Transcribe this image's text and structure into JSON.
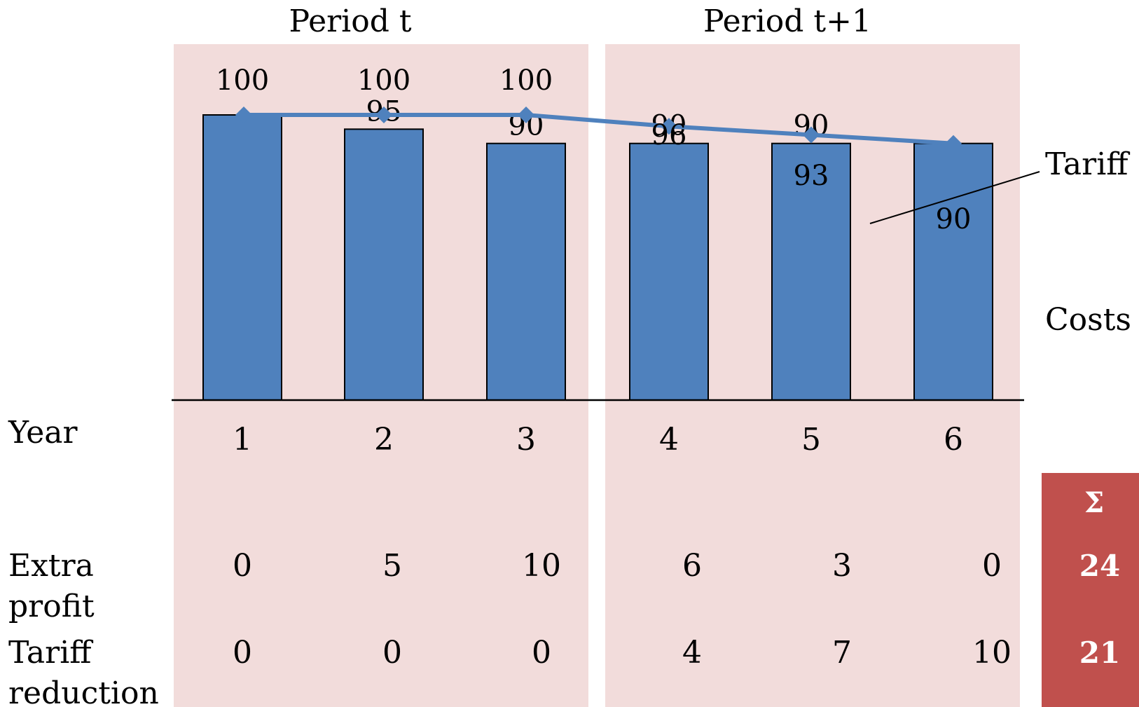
{
  "colors": {
    "period_bg": "#f2dcdb",
    "bar_fill": "#4f81bd",
    "bar_stroke": "#000000",
    "tariff_line": "#4f81bd",
    "sum_bg": "#c0504d",
    "sum_text": "#ffffff",
    "axis": "#000000"
  },
  "periods": [
    "Period t",
    "Period t+1"
  ],
  "chart_data": {
    "type": "bar",
    "categories": [
      "1",
      "2",
      "3",
      "4",
      "5",
      "6"
    ],
    "series": [
      {
        "name": "Costs",
        "kind": "bar",
        "values": [
          100,
          95,
          90,
          90,
          90,
          90
        ]
      },
      {
        "name": "Tariff",
        "kind": "line",
        "marker": "diamond",
        "values": [
          100,
          100,
          100,
          96,
          93,
          90
        ]
      }
    ],
    "bar_labels": [
      "",
      "95",
      "90",
      "90",
      "90",
      ""
    ],
    "line_labels": [
      "100",
      "100",
      "100",
      "96",
      "93",
      "90"
    ],
    "ylim": [
      0,
      100
    ],
    "grid": false,
    "legend": "right"
  },
  "table": {
    "year_label": "Year",
    "sum_symbol": "Σ",
    "rows": [
      {
        "label_lines": [
          "Extra",
          "profit"
        ],
        "values": [
          "0",
          "5",
          "10",
          "6",
          "3",
          "0"
        ],
        "sum": "24"
      },
      {
        "label_lines": [
          "Tariff",
          "reduction"
        ],
        "values": [
          "0",
          "0",
          "0",
          "4",
          "7",
          "10"
        ],
        "sum": "21"
      }
    ]
  }
}
